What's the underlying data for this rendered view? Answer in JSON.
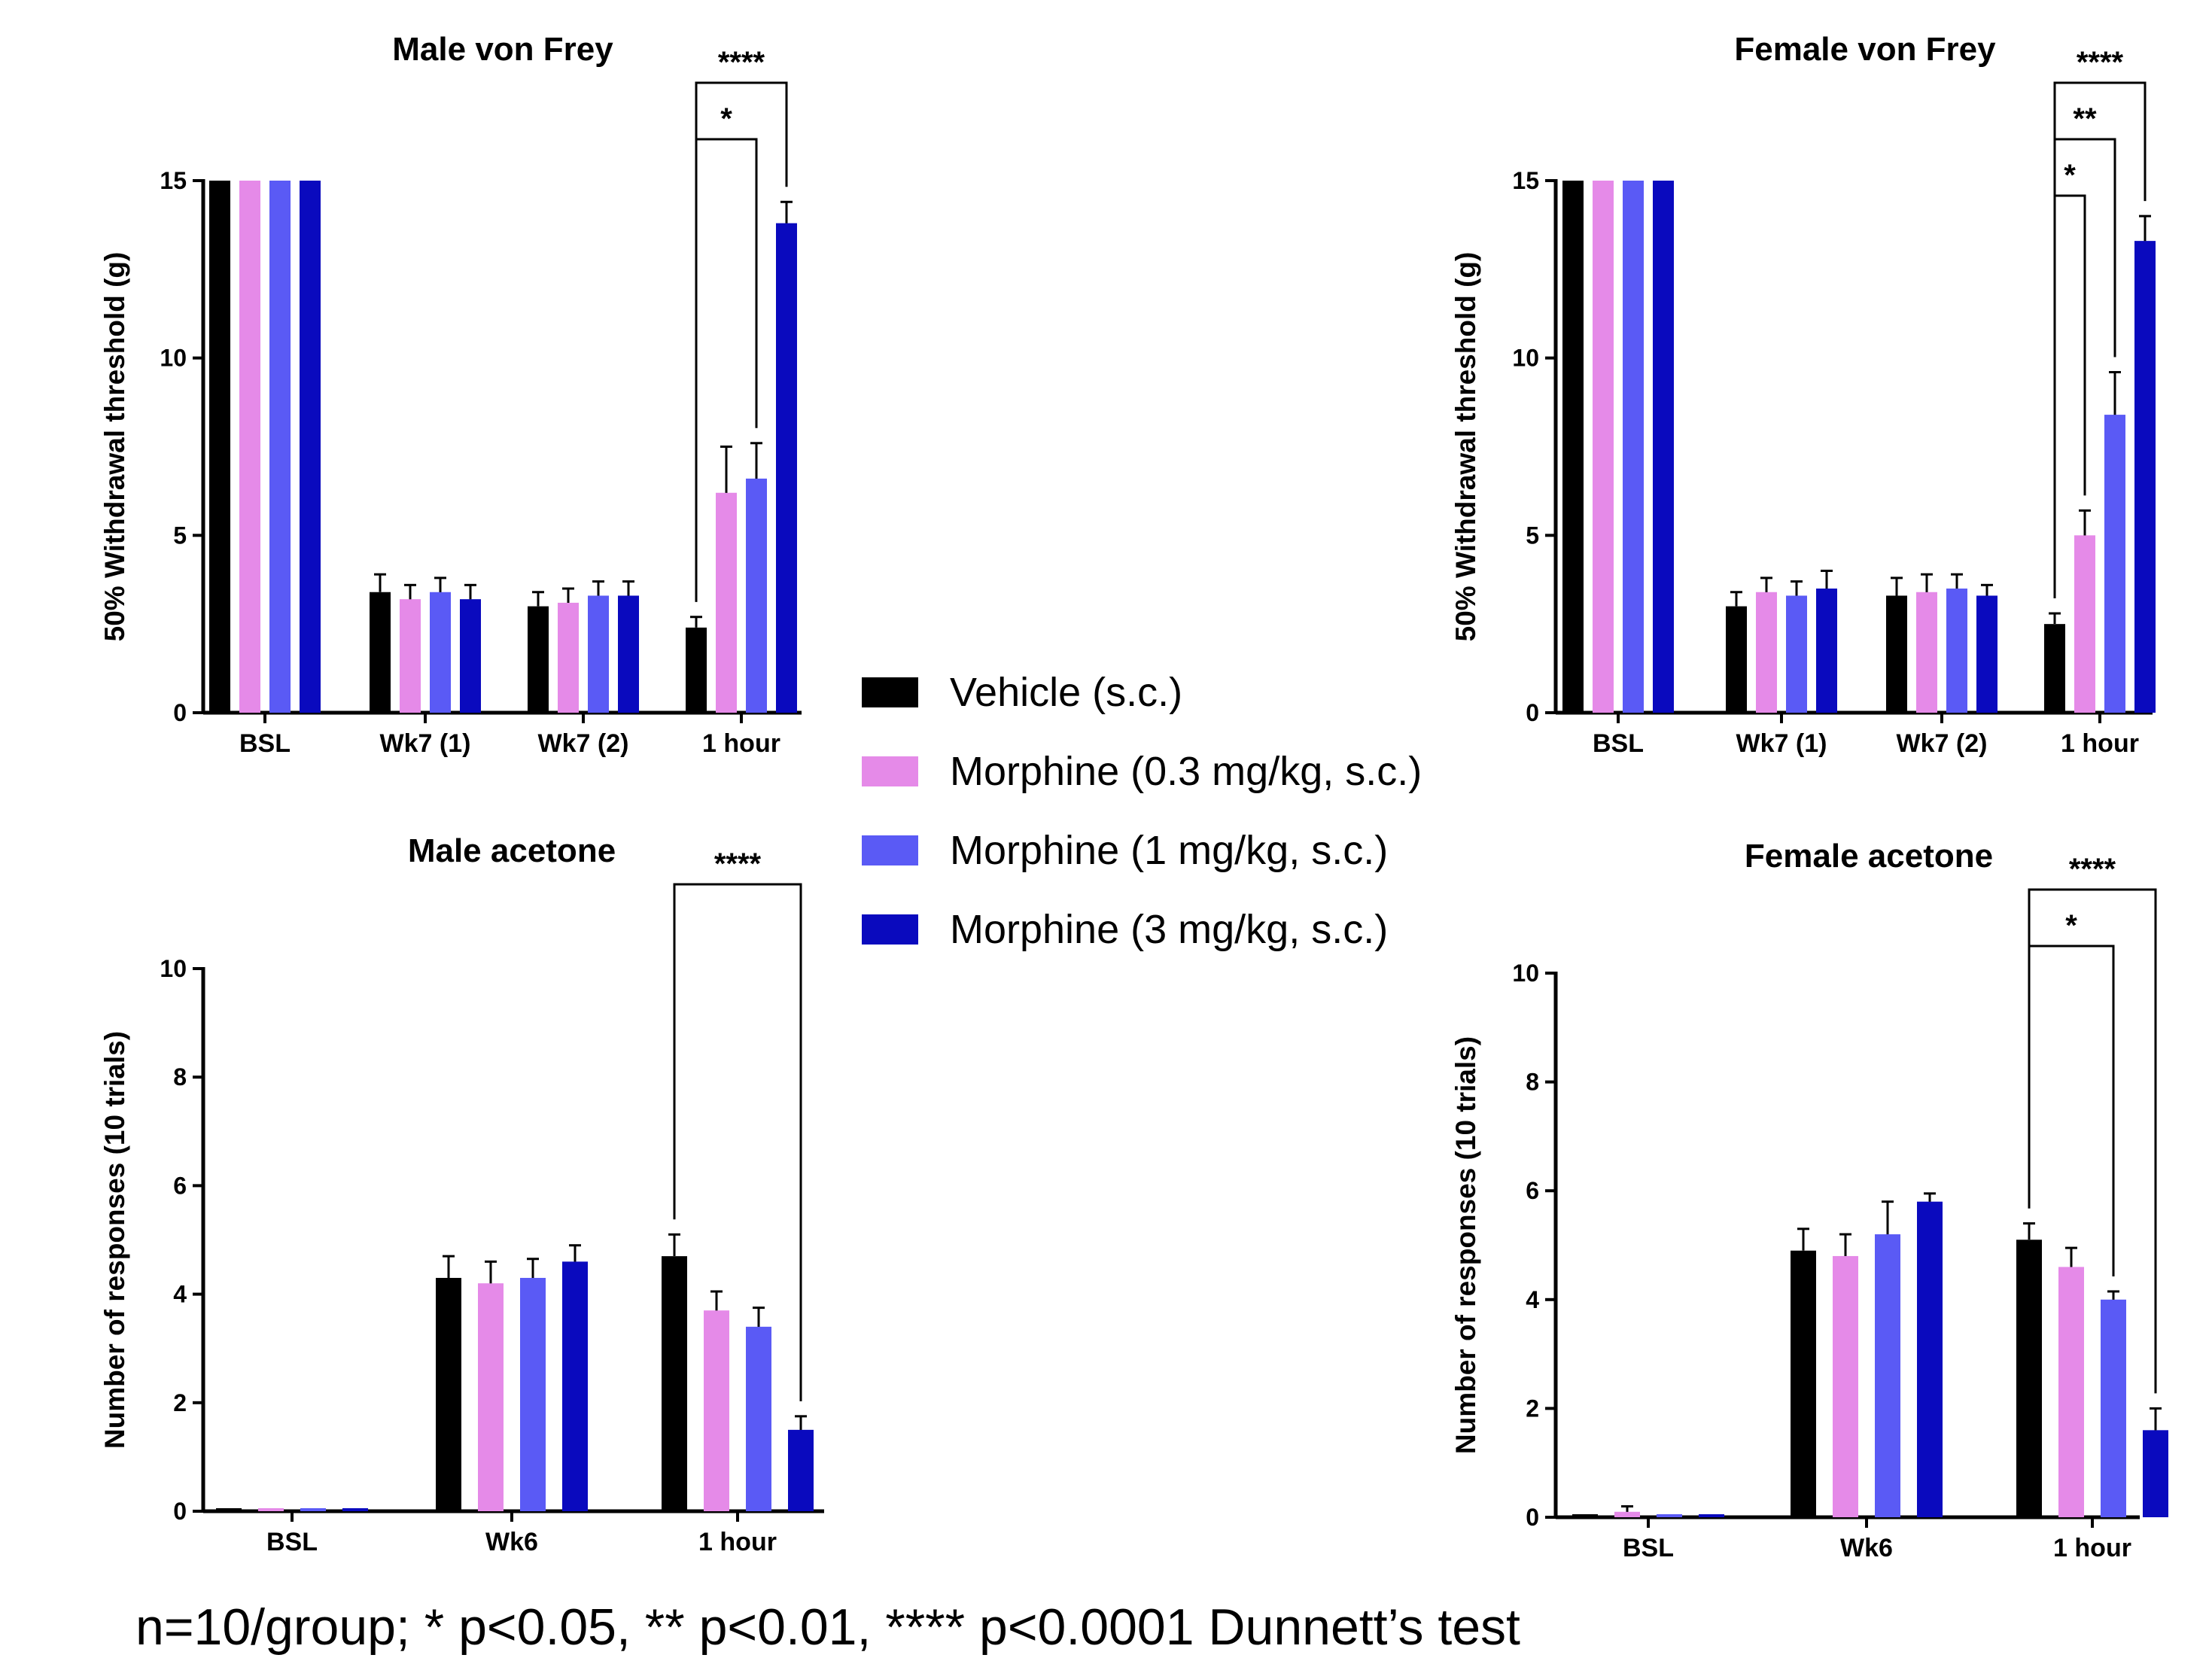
{
  "footnote": "n=10/group; * p<0.05, ** p<0.01, **** p<0.0001 Dunnett’s test",
  "legend": [
    {
      "label": "Vehicle (s.c.)",
      "color": "#000000"
    },
    {
      "label": "Morphine (0.3 mg/kg, s.c.)",
      "color": "#E58AE8"
    },
    {
      "label": "Morphine (1 mg/kg, s.c.)",
      "color": "#5A5AF5"
    },
    {
      "label": "Morphine (3 mg/kg, s.c.)",
      "color": "#0A0ABE"
    }
  ],
  "chart_data": [
    {
      "type": "bar",
      "title": "Male von  Frey",
      "ylabel": "50% Withdrawal threshold (g)",
      "ylim": [
        0,
        15
      ],
      "yticks": [
        0,
        5,
        10,
        15
      ],
      "categories": [
        "BSL",
        "Wk7 (1)",
        "Wk7 (2)",
        "1 hour"
      ],
      "series": [
        {
          "name": "Vehicle (s.c.)",
          "values": [
            15,
            3.4,
            3.0,
            2.4
          ],
          "errors": [
            0,
            0.5,
            0.4,
            0.3
          ]
        },
        {
          "name": "Morphine (0.3 mg/kg, s.c.)",
          "values": [
            15,
            3.2,
            3.1,
            6.2
          ],
          "errors": [
            0,
            0.4,
            0.4,
            1.3
          ]
        },
        {
          "name": "Morphine (1 mg/kg, s.c.)",
          "values": [
            15,
            3.4,
            3.3,
            6.6
          ],
          "errors": [
            0,
            0.4,
            0.4,
            1.0
          ]
        },
        {
          "name": "Morphine (3 mg/kg, s.c.)",
          "values": [
            15,
            3.2,
            3.3,
            13.8
          ],
          "errors": [
            0,
            0.4,
            0.4,
            0.6
          ]
        }
      ],
      "significance": [
        {
          "category": "1 hour",
          "from": 0,
          "to": 2,
          "label": "*"
        },
        {
          "category": "1 hour",
          "from": 0,
          "to": 3,
          "label": "****"
        }
      ]
    },
    {
      "type": "bar",
      "title": "Female von Frey",
      "ylabel": "50% Withdrawal threshold (g)",
      "ylim": [
        0,
        15
      ],
      "yticks": [
        0,
        5,
        10,
        15
      ],
      "categories": [
        "BSL",
        "Wk7 (1)",
        "Wk7 (2)",
        "1 hour"
      ],
      "series": [
        {
          "name": "Vehicle (s.c.)",
          "values": [
            15,
            3.0,
            3.3,
            2.5
          ],
          "errors": [
            0,
            0.4,
            0.5,
            0.3
          ]
        },
        {
          "name": "Morphine (0.3 mg/kg, s.c.)",
          "values": [
            15,
            3.4,
            3.4,
            5.0
          ],
          "errors": [
            0,
            0.4,
            0.5,
            0.7
          ]
        },
        {
          "name": "Morphine (1 mg/kg, s.c.)",
          "values": [
            15,
            3.3,
            3.5,
            8.4
          ],
          "errors": [
            0,
            0.4,
            0.4,
            1.2
          ]
        },
        {
          "name": "Morphine (3 mg/kg, s.c.)",
          "values": [
            15,
            3.5,
            3.3,
            13.3
          ],
          "errors": [
            0,
            0.5,
            0.3,
            0.7
          ]
        }
      ],
      "significance": [
        {
          "category": "1 hour",
          "from": 0,
          "to": 1,
          "label": "*"
        },
        {
          "category": "1 hour",
          "from": 0,
          "to": 2,
          "label": "**"
        },
        {
          "category": "1 hour",
          "from": 0,
          "to": 3,
          "label": "****"
        }
      ]
    },
    {
      "type": "bar",
      "title": "Male acetone",
      "ylabel": "Number of responses (10 trials)",
      "ylim": [
        0,
        10
      ],
      "yticks": [
        0,
        2,
        4,
        6,
        8,
        10
      ],
      "categories": [
        "BSL",
        "Wk6",
        "1 hour"
      ],
      "series": [
        {
          "name": "Vehicle (s.c.)",
          "values": [
            0,
            4.3,
            4.7
          ],
          "errors": [
            0,
            0.4,
            0.4
          ]
        },
        {
          "name": "Morphine (0.3 mg/kg, s.c.)",
          "values": [
            0,
            4.2,
            3.7
          ],
          "errors": [
            0,
            0.4,
            0.35
          ]
        },
        {
          "name": "Morphine (1 mg/kg, s.c.)",
          "values": [
            0,
            4.3,
            3.4
          ],
          "errors": [
            0,
            0.35,
            0.35
          ]
        },
        {
          "name": "Morphine (3 mg/kg, s.c.)",
          "values": [
            0,
            4.6,
            1.5
          ],
          "errors": [
            0,
            0.3,
            0.25
          ]
        }
      ],
      "significance": [
        {
          "category": "1 hour",
          "from": 0,
          "to": 3,
          "label": "****"
        }
      ]
    },
    {
      "type": "bar",
      "title": "Female acetone",
      "ylabel": "Number of responses (10 trials)",
      "ylim": [
        0,
        10
      ],
      "yticks": [
        0,
        2,
        4,
        6,
        8,
        10
      ],
      "categories": [
        "BSL",
        "Wk6",
        "1 hour"
      ],
      "series": [
        {
          "name": "Vehicle (s.c.)",
          "values": [
            0,
            4.9,
            5.1
          ],
          "errors": [
            0,
            0.4,
            0.3
          ]
        },
        {
          "name": "Morphine (0.3 mg/kg, s.c.)",
          "values": [
            0.1,
            4.8,
            4.6
          ],
          "errors": [
            0.1,
            0.4,
            0.35
          ]
        },
        {
          "name": "Morphine (1 mg/kg, s.c.)",
          "values": [
            0,
            5.2,
            4.0
          ],
          "errors": [
            0,
            0.6,
            0.15
          ]
        },
        {
          "name": "Morphine (3 mg/kg, s.c.)",
          "values": [
            0,
            5.8,
            1.6
          ],
          "errors": [
            0,
            0.15,
            0.4
          ]
        }
      ],
      "significance": [
        {
          "category": "1 hour",
          "from": 0,
          "to": 2,
          "label": "*"
        },
        {
          "category": "1 hour",
          "from": 0,
          "to": 3,
          "label": "****"
        }
      ]
    }
  ]
}
